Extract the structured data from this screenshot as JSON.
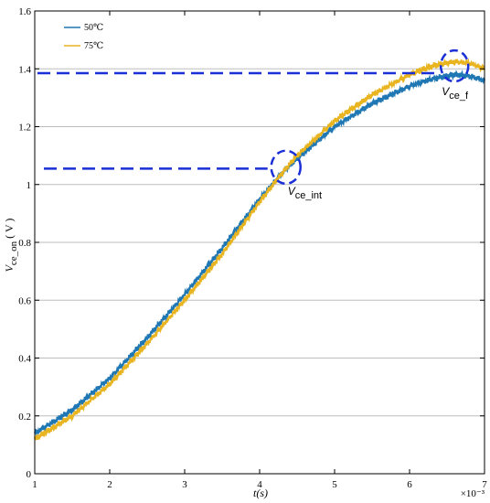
{
  "chart_data": {
    "type": "line",
    "xlabel": "t(s)",
    "x_exponent": "×10⁻³",
    "ylabel": "V_ce_on (V)",
    "ylabel_main": "V",
    "ylabel_sub": "ce_on",
    "ylabel_unit": "( V )",
    "xlim": [
      1,
      7
    ],
    "ylim": [
      0,
      1.6
    ],
    "xticks": [
      1,
      2,
      3,
      4,
      5,
      6,
      7
    ],
    "xtick_labels": [
      "1",
      "2",
      "3",
      "4",
      "5",
      "6",
      "7"
    ],
    "yticks": [
      0,
      0.2,
      0.4,
      0.6,
      0.8,
      1,
      1.2,
      1.4,
      1.6
    ],
    "ytick_labels": [
      "0",
      "0.2",
      "0.4",
      "0.6",
      "0.8",
      "1",
      "1.2",
      "1.4",
      "1.6"
    ],
    "grid": "horizontal",
    "legend_position": "top-left",
    "series": [
      {
        "name": "50℃",
        "color": "#1f77b4",
        "x": [
          1.0,
          1.5,
          2.0,
          2.5,
          3.0,
          3.5,
          4.0,
          4.3,
          4.5,
          5.0,
          5.5,
          6.0,
          6.3,
          6.6,
          6.8,
          7.0
        ],
        "y": [
          0.14,
          0.22,
          0.33,
          0.47,
          0.62,
          0.78,
          0.95,
          1.04,
          1.09,
          1.2,
          1.28,
          1.34,
          1.365,
          1.38,
          1.375,
          1.36
        ]
      },
      {
        "name": "75℃",
        "color": "#e8b420",
        "x": [
          1.0,
          1.5,
          2.0,
          2.5,
          3.0,
          3.5,
          4.0,
          4.3,
          4.5,
          5.0,
          5.5,
          6.0,
          6.3,
          6.6,
          6.8,
          7.0
        ],
        "y": [
          0.12,
          0.2,
          0.31,
          0.45,
          0.6,
          0.76,
          0.94,
          1.04,
          1.1,
          1.22,
          1.31,
          1.38,
          1.41,
          1.425,
          1.42,
          1.4
        ]
      }
    ],
    "annotations": [
      {
        "label_main": "V",
        "label_sub": "ce_int",
        "x": 4.35,
        "y": 1.06,
        "line_y": 1.055
      },
      {
        "label_main": "V",
        "label_sub": "ce_f",
        "x": 6.6,
        "y": 1.41,
        "line_y": 1.385
      }
    ]
  }
}
